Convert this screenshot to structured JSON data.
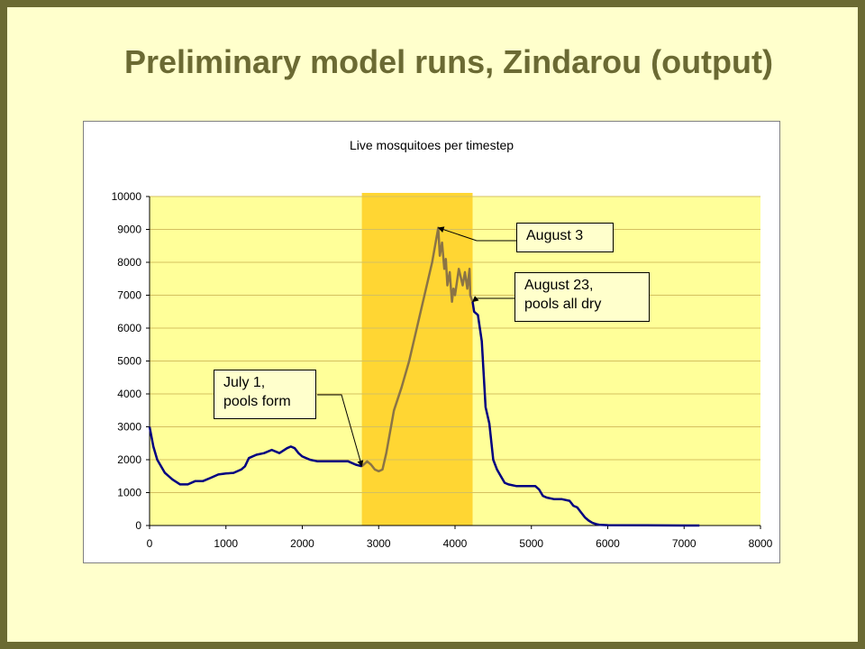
{
  "slide": {
    "title": "Preliminary model runs, Zindarou (output)"
  },
  "chart_data": {
    "type": "line",
    "title": "Live mosquitoes per timestep",
    "xlabel": "",
    "ylabel": "",
    "xlim": [
      0,
      8000
    ],
    "ylim": [
      0,
      10000
    ],
    "x_ticks": [
      0,
      1000,
      2000,
      3000,
      4000,
      5000,
      6000,
      7000,
      8000
    ],
    "y_ticks": [
      0,
      1000,
      2000,
      3000,
      4000,
      5000,
      6000,
      7000,
      8000,
      9000,
      10000
    ],
    "grid": "horizontal",
    "plot_background": "#ffff99",
    "highlight_band": {
      "x_start": 2780,
      "x_end": 4230,
      "color": "#ffd633"
    },
    "series": [
      {
        "color_outside": "#000080",
        "color_inside": "#8b7445",
        "x": [
          0,
          50,
          100,
          200,
          300,
          400,
          500,
          600,
          700,
          800,
          900,
          1000,
          1100,
          1200,
          1250,
          1300,
          1400,
          1500,
          1600,
          1700,
          1800,
          1850,
          1900,
          1950,
          2000,
          2100,
          2200,
          2300,
          2400,
          2500,
          2600,
          2700,
          2780,
          2850,
          2900,
          2950,
          3000,
          3050,
          3100,
          3200,
          3300,
          3400,
          3500,
          3600,
          3700,
          3780,
          3800,
          3830,
          3860,
          3880,
          3900,
          3930,
          3960,
          3980,
          4000,
          4050,
          4100,
          4130,
          4160,
          4190,
          4200,
          4230,
          4250,
          4300,
          4350,
          4400,
          4450,
          4500,
          4550,
          4600,
          4650,
          4700,
          4800,
          4900,
          5000,
          5050,
          5100,
          5150,
          5200,
          5300,
          5400,
          5500,
          5550,
          5600,
          5650,
          5700,
          5750,
          5800,
          5850,
          5900,
          6000,
          6500,
          7000,
          7200
        ],
        "y": [
          3000,
          2400,
          2000,
          1600,
          1400,
          1250,
          1250,
          1350,
          1350,
          1450,
          1550,
          1580,
          1600,
          1700,
          1800,
          2050,
          2150,
          2200,
          2300,
          2200,
          2350,
          2400,
          2350,
          2200,
          2100,
          2000,
          1950,
          1950,
          1950,
          1950,
          1950,
          1850,
          1800,
          1950,
          1850,
          1700,
          1650,
          1700,
          2200,
          3500,
          4200,
          5000,
          6000,
          7000,
          8000,
          9050,
          8200,
          8600,
          7800,
          8100,
          7300,
          7700,
          6800,
          7200,
          7000,
          7800,
          7300,
          7700,
          7200,
          7800,
          7000,
          6800,
          6500,
          6400,
          5600,
          3600,
          3100,
          2000,
          1700,
          1500,
          1300,
          1250,
          1200,
          1200,
          1200,
          1200,
          1100,
          900,
          850,
          800,
          800,
          750,
          600,
          550,
          400,
          250,
          150,
          80,
          40,
          20,
          10,
          5,
          0,
          0
        ]
      }
    ],
    "annotations": [
      {
        "text_lines": [
          "July 1,",
          "pools form"
        ],
        "x": 2780,
        "y": 1800
      },
      {
        "text_lines": [
          "August 3"
        ],
        "x": 3780,
        "y": 9050
      },
      {
        "text_lines": [
          "August 23,",
          "pools all dry"
        ],
        "x": 4230,
        "y": 6800
      }
    ]
  }
}
